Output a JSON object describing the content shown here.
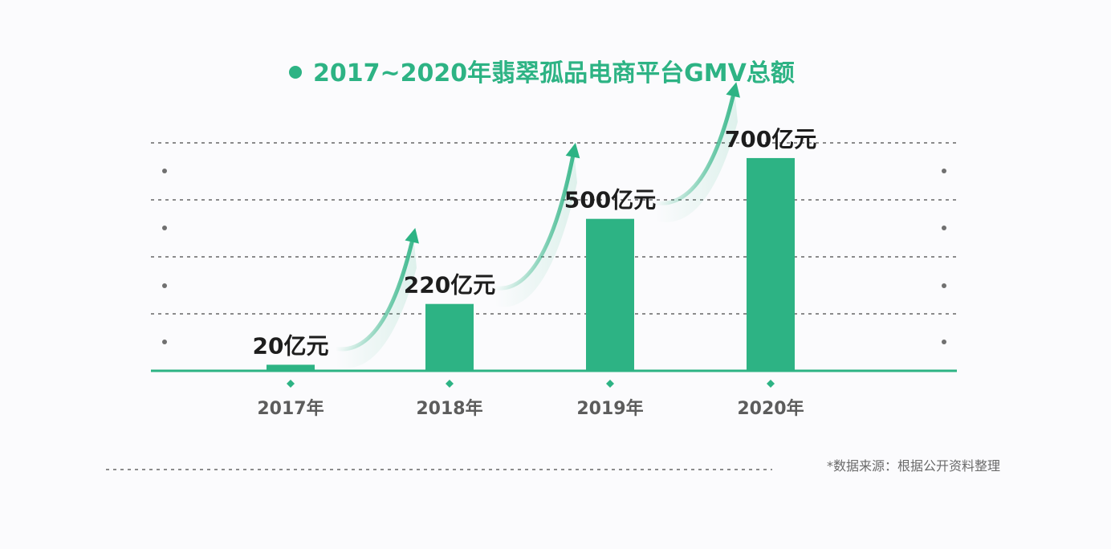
{
  "colors": {
    "accent": "#2db384",
    "grid": "#666666",
    "value_text": "#1d1d1d",
    "tick_text": "#5c5c5c",
    "source_text": "#6a6a6a",
    "background": "#fbfbfd"
  },
  "chart_data": {
    "type": "bar",
    "title": "2017~2020年翡翠孤品电商平台GMV总额",
    "categories": [
      "2017年",
      "2018年",
      "2019年",
      "2020年"
    ],
    "series": [
      {
        "values": [
          20,
          220,
          500,
          700
        ]
      }
    ],
    "value_labels": [
      "20亿元",
      "220亿元",
      "500亿元",
      "700亿元"
    ],
    "ylim": [
      0,
      750
    ],
    "grid": true,
    "growth_arrows": true,
    "source_note": "*数据来源：根据公开资料整理"
  }
}
